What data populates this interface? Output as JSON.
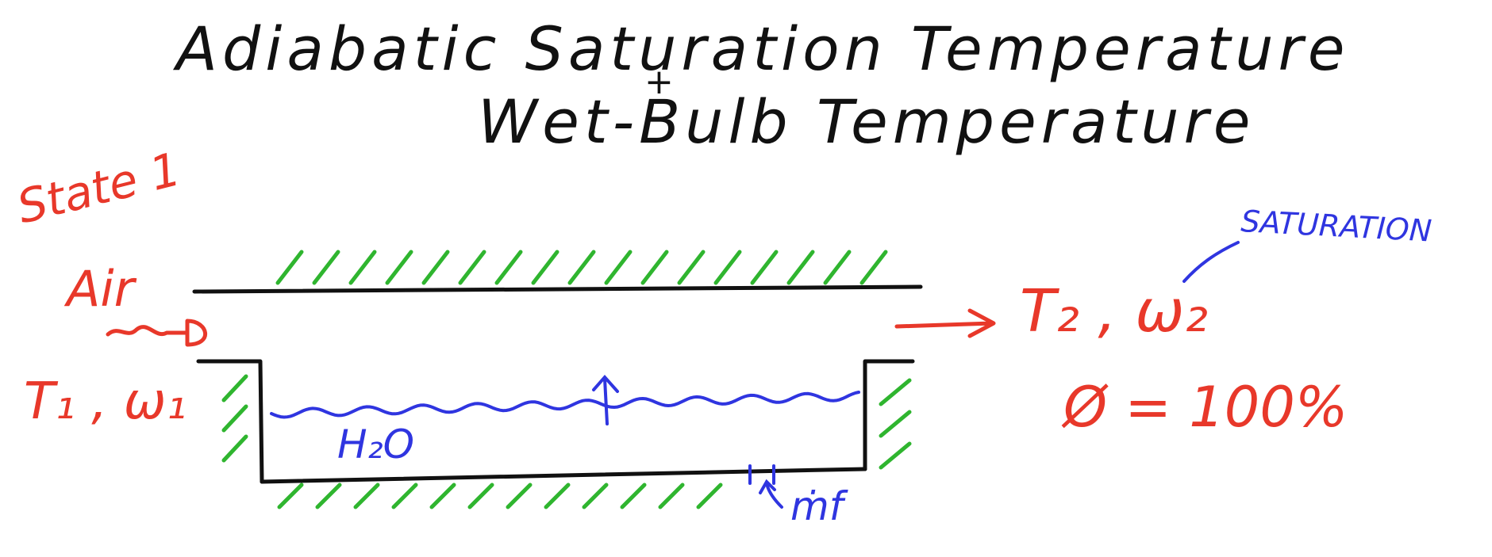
{
  "title": {
    "line1": "Adiabatic Saturation Temperature",
    "plus": "+",
    "line2": "Wet-Bulb Temperature"
  },
  "labels": {
    "state": "State 1",
    "air": "Air",
    "inlet": "T₁ , ω₁",
    "water": "H₂O",
    "outlet": "T₂ , ω₂",
    "phi": "Ø = 100%",
    "saturation": "SATURATION",
    "mdot": "ṁf"
  },
  "colors": {
    "ink": "#111111",
    "red": "#e8382a",
    "blue": "#2f35e0",
    "green": "#2fb52f"
  }
}
